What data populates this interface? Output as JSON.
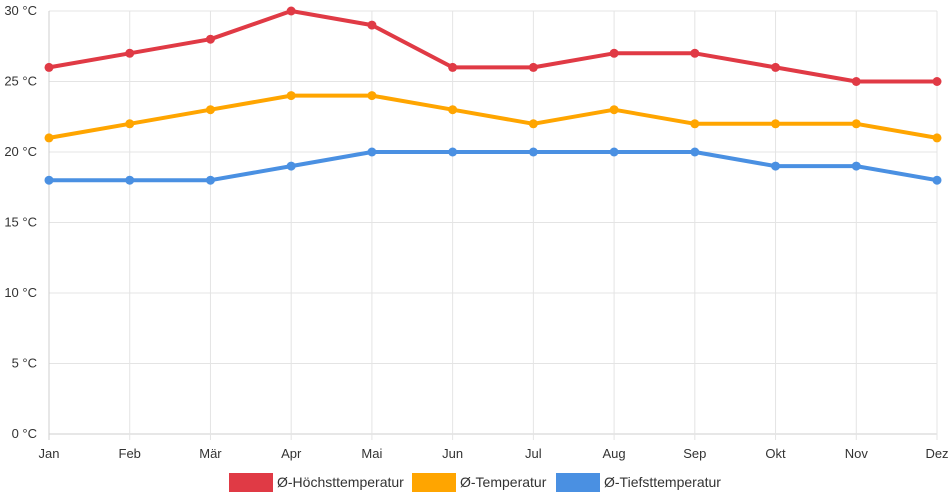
{
  "chart_data": {
    "type": "line",
    "title": "",
    "xlabel": "",
    "ylabel": "",
    "categories": [
      "Jan",
      "Feb",
      "Mär",
      "Apr",
      "Mai",
      "Jun",
      "Jul",
      "Aug",
      "Sep",
      "Okt",
      "Nov",
      "Dez"
    ],
    "ylim": [
      0,
      30
    ],
    "y_ticks": [
      0,
      5,
      10,
      15,
      20,
      25,
      30
    ],
    "y_unit": " °C",
    "y_tick_labels": [
      "0 °C",
      "5 °C",
      "10 °C",
      "15 °C",
      "20 °C",
      "25 °C",
      "30 °C"
    ],
    "grid": true,
    "legend_position": "bottom",
    "series": [
      {
        "name": "Ø-Höchsttemperatur",
        "color": "#e03a45",
        "values": [
          26,
          27,
          28,
          30,
          29,
          26,
          26,
          27,
          27,
          26,
          25,
          25
        ]
      },
      {
        "name": "Ø-Temperatur",
        "color": "#ffa500",
        "values": [
          21,
          22,
          23,
          24,
          24,
          23,
          22,
          23,
          22,
          22,
          22,
          21
        ]
      },
      {
        "name": "Ø-Tiefsttemperatur",
        "color": "#4a90e2",
        "values": [
          18,
          18,
          18,
          19,
          20,
          20,
          20,
          20,
          20,
          19,
          19,
          18
        ]
      }
    ]
  }
}
